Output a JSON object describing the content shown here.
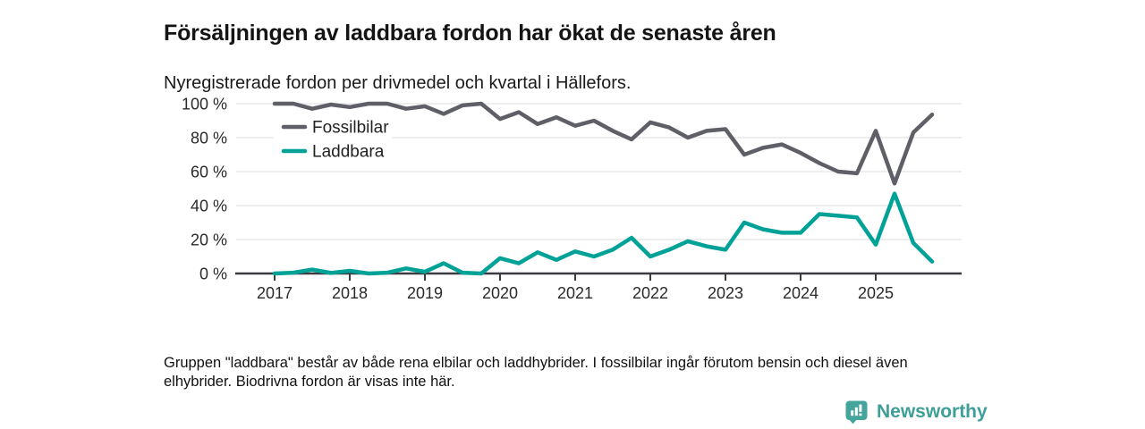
{
  "header": {
    "title": "Försäljningen av laddbara fordon har ökat de senaste åren",
    "subtitle": "Nyregistrerade fordon per drivmedel och kvartal i Hällefors."
  },
  "chart_data": {
    "type": "line",
    "x": [
      "2017Q1",
      "2017Q2",
      "2017Q3",
      "2017Q4",
      "2018Q1",
      "2018Q2",
      "2018Q3",
      "2018Q4",
      "2019Q1",
      "2019Q2",
      "2019Q3",
      "2019Q4",
      "2020Q1",
      "2020Q2",
      "2020Q3",
      "2020Q4",
      "2021Q1",
      "2021Q2",
      "2021Q3",
      "2021Q4",
      "2022Q1",
      "2022Q2",
      "2022Q3",
      "2022Q4",
      "2023Q1",
      "2023Q2",
      "2023Q3",
      "2023Q4",
      "2024Q1",
      "2024Q2",
      "2024Q3",
      "2024Q4",
      "2025Q1",
      "2025Q2",
      "2025Q3",
      "2025Q4"
    ],
    "series": [
      {
        "name": "Fossilbilar",
        "color": "#5f5f68",
        "values": [
          100,
          100,
          97,
          99.5,
          98,
          100,
          100,
          97,
          98.5,
          94,
          99,
          100,
          91,
          95,
          88,
          92,
          87,
          90,
          84,
          79,
          89,
          86,
          80,
          84,
          85,
          70,
          74,
          76,
          71,
          65,
          60,
          59,
          84,
          53,
          83,
          93.5
        ]
      },
      {
        "name": "Laddbara",
        "color": "#00a298",
        "values": [
          0,
          0.5,
          2.3,
          0.3,
          1.6,
          0,
          0.5,
          3,
          1,
          6,
          0.5,
          0,
          9,
          6,
          12.5,
          8,
          13,
          10,
          14,
          21,
          10,
          14,
          19,
          16,
          14,
          30,
          26,
          24,
          24,
          35,
          34,
          33,
          17,
          47,
          18,
          7
        ]
      }
    ],
    "ylim": [
      0,
      100
    ],
    "y_ticks": [
      "0 %",
      "20 %",
      "40 %",
      "60 %",
      "80 %",
      "100 %"
    ],
    "x_ticks": [
      "2017",
      "2018",
      "2019",
      "2020",
      "2021",
      "2022",
      "2023",
      "2024",
      "2025"
    ],
    "grid": "horizontal",
    "legend_position": "inside-top-left"
  },
  "footnote": {
    "text": "Gruppen \"laddbara\" består av både rena elbilar och laddhybrider. I fossilbilar ingår förutom bensin och diesel även elhybrider. Biodrivna fordon är visas inte här."
  },
  "branding": {
    "logo_text": "Newsworthy",
    "logo_color": "#3d9f97",
    "icon": "chart-bubble-icon"
  },
  "colors": {
    "axis": "#3b3b41",
    "grid": "#e4e4e4",
    "tick_label": "#2a2a2a",
    "legend_bg": "#ffffff"
  }
}
